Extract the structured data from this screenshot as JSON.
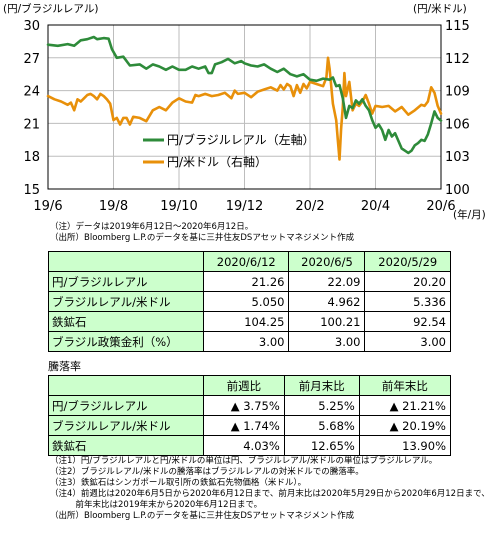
{
  "chart_data": {
    "type": "line",
    "left_axis_unit": "(円/ブラジルレアル)",
    "right_axis_unit": "(円/米ドル)",
    "x_unit": "(年/月)",
    "left_ticks": [
      "30",
      "27",
      "24",
      "21",
      "18",
      "15"
    ],
    "right_ticks": [
      "115",
      "112",
      "109",
      "106",
      "103",
      "100"
    ],
    "x_ticks": [
      "19/6",
      "19/8",
      "19/10",
      "19/12",
      "20/2",
      "20/4",
      "20/6"
    ],
    "ylim_left": [
      15,
      30
    ],
    "ylim_right": [
      100,
      115
    ],
    "grid": true,
    "legend_position": "center-left",
    "series": [
      {
        "name": "円/ブラジルレアル（左軸）",
        "axis": "left",
        "color": "#2e8b3a",
        "values": [
          [
            0.0,
            28.2
          ],
          [
            0.3,
            28.1
          ],
          [
            0.6,
            28.25
          ],
          [
            0.8,
            28.1
          ],
          [
            1.0,
            28.6
          ],
          [
            1.2,
            28.7
          ],
          [
            1.4,
            28.9
          ],
          [
            1.5,
            28.7
          ],
          [
            1.7,
            28.8
          ],
          [
            1.85,
            28.75
          ],
          [
            1.95,
            27.8
          ],
          [
            2.1,
            27.0
          ],
          [
            2.3,
            27.1
          ],
          [
            2.5,
            26.3
          ],
          [
            2.8,
            26.4
          ],
          [
            3.0,
            26.0
          ],
          [
            3.2,
            26.4
          ],
          [
            3.4,
            26.2
          ],
          [
            3.6,
            25.9
          ],
          [
            3.8,
            26.2
          ],
          [
            4.0,
            25.9
          ],
          [
            4.2,
            25.9
          ],
          [
            4.4,
            26.2
          ],
          [
            4.6,
            26.0
          ],
          [
            4.8,
            26.2
          ],
          [
            4.9,
            25.6
          ],
          [
            5.0,
            25.6
          ],
          [
            5.1,
            26.4
          ],
          [
            5.3,
            26.6
          ],
          [
            5.5,
            26.9
          ],
          [
            5.7,
            26.5
          ],
          [
            5.9,
            26.7
          ],
          [
            6.0,
            26.5
          ],
          [
            6.2,
            26.3
          ],
          [
            6.4,
            26.2
          ],
          [
            6.6,
            26.4
          ],
          [
            6.8,
            26.0
          ],
          [
            7.0,
            25.7
          ],
          [
            7.2,
            26.0
          ],
          [
            7.4,
            25.5
          ],
          [
            7.6,
            25.3
          ],
          [
            7.8,
            25.5
          ],
          [
            8.0,
            25.0
          ],
          [
            8.2,
            24.9
          ],
          [
            8.4,
            25.1
          ],
          [
            8.6,
            25.0
          ],
          [
            8.7,
            25.2
          ],
          [
            8.8,
            24.4
          ],
          [
            8.9,
            24.5
          ],
          [
            9.0,
            23.3
          ],
          [
            9.1,
            21.5
          ],
          [
            9.2,
            22.6
          ],
          [
            9.3,
            22.4
          ],
          [
            9.4,
            23.1
          ],
          [
            9.5,
            22.8
          ],
          [
            9.6,
            23.2
          ],
          [
            9.7,
            22.6
          ],
          [
            9.8,
            22.2
          ],
          [
            9.9,
            21.3
          ],
          [
            10.0,
            20.6
          ],
          [
            10.1,
            20.9
          ],
          [
            10.2,
            20.4
          ],
          [
            10.3,
            19.5
          ],
          [
            10.4,
            20.4
          ],
          [
            10.5,
            19.8
          ],
          [
            10.6,
            20.1
          ],
          [
            10.7,
            19.4
          ],
          [
            10.8,
            18.7
          ],
          [
            10.9,
            18.5
          ],
          [
            11.0,
            18.3
          ],
          [
            11.1,
            18.5
          ],
          [
            11.2,
            19.0
          ],
          [
            11.3,
            19.2
          ],
          [
            11.4,
            19.5
          ],
          [
            11.5,
            19.4
          ],
          [
            11.6,
            20.0
          ],
          [
            11.7,
            21.0
          ],
          [
            11.8,
            22.1
          ],
          [
            11.9,
            21.5
          ],
          [
            12.0,
            21.26
          ]
        ]
      },
      {
        "name": "円/米ドル（右軸）",
        "axis": "right",
        "color": "#e8900a",
        "values": [
          [
            0.0,
            108.5
          ],
          [
            0.2,
            108.2
          ],
          [
            0.4,
            108.0
          ],
          [
            0.6,
            107.7
          ],
          [
            0.7,
            107.9
          ],
          [
            0.8,
            107.2
          ],
          [
            0.9,
            108.2
          ],
          [
            1.0,
            108.0
          ],
          [
            1.1,
            108.3
          ],
          [
            1.2,
            108.6
          ],
          [
            1.3,
            108.7
          ],
          [
            1.4,
            108.5
          ],
          [
            1.5,
            108.2
          ],
          [
            1.6,
            108.7
          ],
          [
            1.7,
            108.5
          ],
          [
            1.8,
            108.2
          ],
          [
            1.9,
            107.8
          ],
          [
            2.0,
            106.3
          ],
          [
            2.1,
            106.5
          ],
          [
            2.2,
            105.9
          ],
          [
            2.3,
            106.5
          ],
          [
            2.4,
            106.5
          ],
          [
            2.5,
            105.9
          ],
          [
            2.6,
            106.6
          ],
          [
            2.8,
            106.5
          ],
          [
            3.0,
            106.2
          ],
          [
            3.2,
            107.2
          ],
          [
            3.4,
            107.5
          ],
          [
            3.6,
            107.2
          ],
          [
            3.8,
            107.9
          ],
          [
            4.0,
            108.3
          ],
          [
            4.2,
            108.0
          ],
          [
            4.4,
            107.9
          ],
          [
            4.5,
            108.6
          ],
          [
            4.6,
            108.5
          ],
          [
            4.8,
            108.7
          ],
          [
            5.0,
            108.5
          ],
          [
            5.2,
            108.6
          ],
          [
            5.4,
            108.8
          ],
          [
            5.6,
            108.3
          ],
          [
            5.7,
            109.0
          ],
          [
            5.8,
            108.7
          ],
          [
            6.0,
            108.8
          ],
          [
            6.2,
            108.4
          ],
          [
            6.4,
            108.9
          ],
          [
            6.6,
            109.1
          ],
          [
            6.8,
            109.3
          ],
          [
            7.0,
            109.0
          ],
          [
            7.1,
            109.5
          ],
          [
            7.2,
            109.1
          ],
          [
            7.3,
            109.6
          ],
          [
            7.4,
            109.4
          ],
          [
            7.5,
            108.5
          ],
          [
            7.6,
            109.5
          ],
          [
            7.7,
            108.8
          ],
          [
            7.8,
            109.6
          ],
          [
            7.9,
            109.2
          ],
          [
            8.0,
            109.8
          ],
          [
            8.2,
            109.6
          ],
          [
            8.4,
            109.4
          ],
          [
            8.5,
            110.2
          ],
          [
            8.55,
            112.0
          ],
          [
            8.6,
            111.0
          ],
          [
            8.7,
            107.8
          ],
          [
            8.8,
            106.3
          ],
          [
            8.85,
            104.5
          ],
          [
            8.9,
            102.7
          ],
          [
            8.95,
            105.5
          ],
          [
            9.0,
            107.5
          ],
          [
            9.05,
            110.6
          ],
          [
            9.1,
            108.5
          ],
          [
            9.2,
            109.8
          ],
          [
            9.3,
            107.2
          ],
          [
            9.4,
            107.8
          ],
          [
            9.5,
            107.6
          ],
          [
            9.6,
            108.0
          ],
          [
            9.7,
            108.6
          ],
          [
            9.8,
            107.8
          ],
          [
            9.9,
            106.9
          ],
          [
            10.0,
            107.6
          ],
          [
            10.2,
            107.5
          ],
          [
            10.4,
            107.6
          ],
          [
            10.6,
            107.1
          ],
          [
            10.8,
            107.5
          ],
          [
            11.0,
            106.8
          ],
          [
            11.2,
            107.2
          ],
          [
            11.4,
            107.7
          ],
          [
            11.5,
            107.6
          ],
          [
            11.6,
            108.0
          ],
          [
            11.7,
            109.3
          ],
          [
            11.8,
            108.8
          ],
          [
            11.9,
            107.6
          ],
          [
            12.0,
            106.9
          ]
        ]
      }
    ]
  },
  "notes_top": [
    "（注）データは2019年6月12日～2020年6月12日。",
    "（出所）Bloomberg L.P.のデータを基に三井住友DSアセットマネジメント作成"
  ],
  "table1": {
    "headers": [
      "2020/6/12",
      "2020/6/5",
      "2020/5/29"
    ],
    "rows": [
      {
        "label": "円/ブラジルレアル",
        "values": [
          "21.26",
          "22.09",
          "20.20"
        ]
      },
      {
        "label": "ブラジルレアル/米ドル",
        "values": [
          "5.050",
          "4.962",
          "5.336"
        ]
      },
      {
        "label": "鉄鉱石",
        "values": [
          "104.25",
          "100.21",
          "92.54"
        ]
      },
      {
        "label": "ブラジル政策金利（%）",
        "values": [
          "3.00",
          "3.00",
          "3.00"
        ]
      }
    ]
  },
  "table2": {
    "title": "騰落率",
    "headers": [
      "前週比",
      "前月末比",
      "前年末比"
    ],
    "rows": [
      {
        "label": "円/ブラジルレアル",
        "values": [
          "▲ 3.75%",
          "5.25%",
          "▲ 21.21%"
        ]
      },
      {
        "label": "ブラジルレアル/米ドル",
        "values": [
          "▲ 1.74%",
          "5.68%",
          "▲ 20.19%"
        ]
      },
      {
        "label": "鉄鉱石",
        "values": [
          "4.03%",
          "12.65%",
          "13.90%"
        ]
      }
    ]
  },
  "notes_bottom": [
    "（注1）円/ブラジルレアルと円/米ドルの単位は円、ブラジルレアル/米ドルの単位はブラジルレアル。",
    "（注2）ブラジルレアル/米ドルの騰落率はブラジルレアルの対米ドルでの騰落率。",
    "（注3）鉄鉱石はシンガポール取引所の鉄鉱石先物価格（米ドル）。",
    "（注4）前週比は2020年6月5日から2020年6月12日まで、前月末比は2020年5月29日から2020年6月12日まで、",
    "　　　前年末比は2019年末から2020年6月12日まで。",
    "（出所）Bloomberg L.P.のデータを基に三井住友DSアセットマネジメント作成"
  ]
}
